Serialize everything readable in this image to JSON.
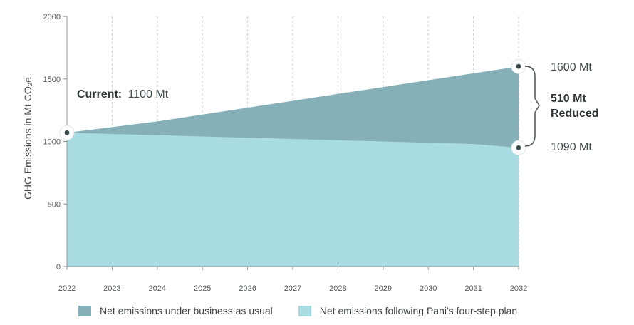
{
  "chart_data": {
    "type": "area",
    "x": [
      2022,
      2023,
      2024,
      2025,
      2026,
      2027,
      2028,
      2029,
      2030,
      2031,
      2032
    ],
    "series": [
      {
        "name": "Net emissions under business as usual",
        "color": "#85b0b8",
        "values": [
          1070,
          1115,
          1160,
          1215,
          1270,
          1325,
          1380,
          1435,
          1490,
          1545,
          1600
        ]
      },
      {
        "name": "Net emissions following Pani's four-step plan",
        "color": "#a9dbe2",
        "values": [
          1070,
          1060,
          1050,
          1040,
          1030,
          1020,
          1010,
          1000,
          990,
          980,
          1090
        ]
      }
    ],
    "ylabel": "GHG Emissions in Mt CO₂e",
    "xlabel": "",
    "ylim": [
      0,
      2000
    ],
    "yticks": [
      0,
      500,
      1000,
      1500,
      2000
    ],
    "grid": "vertical dashed",
    "legend_placement": "bottom",
    "annotations": {
      "current_label": "Current:",
      "current_value": "1100 Mt",
      "top_value": "1600 Mt",
      "bottom_value": "1090 Mt",
      "reduced_line1": "510 Mt",
      "reduced_line2": "Reduced"
    }
  }
}
